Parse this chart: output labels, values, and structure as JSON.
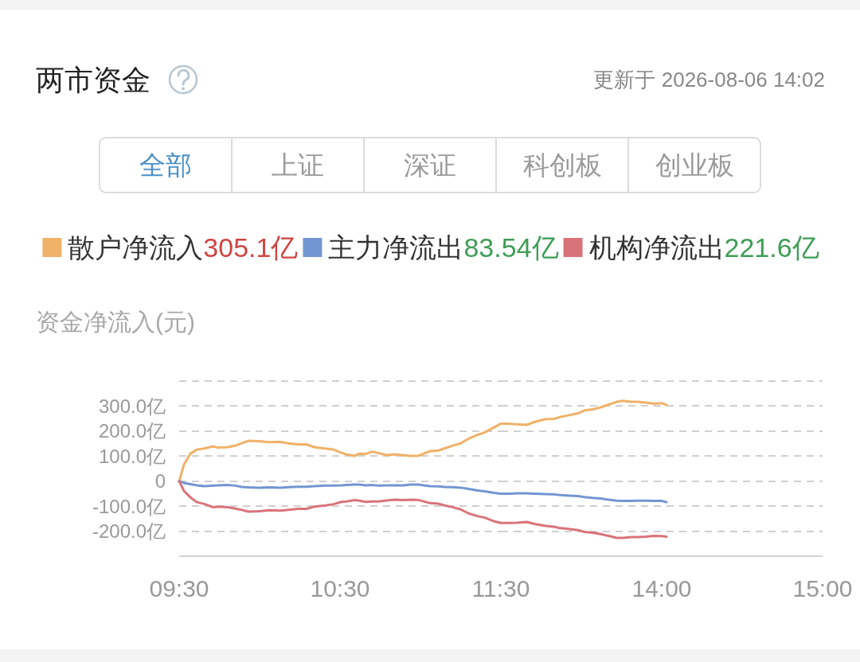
{
  "chart_data": [
    {
      "type": "line",
      "title": "两市资金",
      "ylabel": "资金净流入(元)",
      "annotations": [
        "全部",
        "上证",
        "深证",
        "科创板",
        "创业板",
        "305.1亿",
        "83.54亿",
        "221.6亿"
      ],
      "x": [
        9.5,
        9.53,
        9.57,
        9.61,
        9.66,
        9.71,
        9.74,
        9.8,
        9.85,
        9.89,
        9.93,
        10.0,
        10.06,
        10.13,
        10.18,
        10.24,
        10.29,
        10.34,
        10.41,
        10.46,
        10.51,
        10.54,
        10.59,
        10.62,
        10.66,
        10.7,
        10.74,
        10.79,
        10.84,
        10.89,
        10.94,
        10.99,
        11.02,
        11.06,
        11.11,
        11.15,
        11.2,
        11.25,
        11.3,
        11.35,
        11.4,
        11.46,
        11.5
      ],
      "series": [
        {
          "name": "散户净流入",
          "color": "#f0b168",
          "values": [
            0,
            67,
            110,
            126,
            131,
            139,
            134,
            136,
            142,
            152,
            161,
            160,
            156,
            157,
            151,
            147,
            147,
            136,
            130,
            126,
            113,
            107,
            101,
            110,
            109,
            118,
            112,
            104,
            107,
            104,
            101,
            102,
            110,
            120,
            122,
            131,
            142,
            151,
            170,
            184,
            195,
            216,
            230
          ]
        },
        {
          "name": "主力净流出",
          "color": "#7296d2",
          "values": [
            0,
            -7,
            -12,
            -17,
            -20,
            -18,
            -17,
            -15,
            -18,
            -23,
            -25,
            -26,
            -25,
            -26,
            -24,
            -22,
            -22,
            -20,
            -18,
            -18,
            -17,
            -15,
            -14,
            -14,
            -17,
            -15,
            -18,
            -17,
            -17,
            -17,
            -14,
            -14,
            -17,
            -20,
            -21,
            -23,
            -24,
            -26,
            -31,
            -37,
            -41,
            -47,
            -50
          ]
        },
        {
          "name": "机构净流出",
          "color": "#d9737a",
          "values": [
            0,
            -39,
            -65,
            -84,
            -92,
            -104,
            -102,
            -104,
            -110,
            -115,
            -122,
            -120,
            -116,
            -118,
            -115,
            -111,
            -111,
            -102,
            -97,
            -92,
            -83,
            -81,
            -76,
            -78,
            -83,
            -81,
            -81,
            -77,
            -74,
            -76,
            -74,
            -76,
            -81,
            -88,
            -90,
            -97,
            -104,
            -113,
            -129,
            -139,
            -146,
            -161,
            -167
          ]
        }
      ],
      "xlim": [
        9.5,
        11.5
      ],
      "xticks": [
        {
          "value": 9.5,
          "label": "09:30"
        },
        {
          "value": 10.5,
          "label": "10:30"
        },
        {
          "value": 11.5,
          "label": "11:30"
        }
      ],
      "ylim": [
        -300,
        400
      ],
      "yticks": [
        {
          "value": -300,
          "label": null
        },
        {
          "value": -200,
          "label": "-200.0亿"
        },
        {
          "value": -100,
          "label": "-100.0亿"
        },
        0,
        {
          "value": 100,
          "label": "100.0亿"
        },
        {
          "value": 200,
          "label": "200.0亿"
        },
        {
          "value": 300,
          "label": "300.0亿"
        },
        {
          "value": 400,
          "label": null
        }
      ],
      "grid": "y",
      "legend": "top"
    },
    {
      "type": "line",
      "subtitle": "更新于 2026-08-06 14:02",
      "x": [
        13.0,
        13.05,
        13.1,
        13.16,
        13.21,
        13.28,
        13.33,
        13.36,
        13.41,
        13.48,
        13.52,
        13.57,
        13.62,
        13.67,
        13.72,
        13.76,
        13.81,
        13.85,
        13.9,
        13.95,
        14.0,
        14.03
      ],
      "series": [
        {
          "color": "#f0b168",
          "values": [
            230,
            230,
            227,
            225,
            237,
            248,
            249,
            255,
            262,
            271,
            283,
            287,
            295,
            306,
            317,
            321,
            317,
            317,
            314,
            310,
            312,
            305
          ]
        },
        {
          "color": "#7296d2",
          "values": [
            -50,
            -50,
            -49,
            -49,
            -50,
            -52,
            -53,
            -55,
            -57,
            -60,
            -64,
            -67,
            -69,
            -74,
            -78,
            -79,
            -79,
            -78,
            -78,
            -79,
            -79,
            -84
          ]
        },
        {
          "color": "#d9737a",
          "values": [
            -167,
            -167,
            -166,
            -163,
            -171,
            -179,
            -182,
            -187,
            -190,
            -196,
            -203,
            -206,
            -212,
            -219,
            -227,
            -227,
            -224,
            -224,
            -222,
            -219,
            -220,
            -222
          ]
        }
      ],
      "xlim": [
        13,
        15
      ],
      "xticks": [
        {
          "value": 14,
          "label": "14:00"
        },
        {
          "value": 15,
          "label": "15:00"
        }
      ],
      "ylim": [
        -300,
        400
      ],
      "yticks": [
        {
          "value": -300,
          "label": null
        },
        {
          "value": -200,
          "label": null
        },
        {
          "value": -100,
          "label": null
        },
        {
          "value": 0,
          "label": null
        },
        {
          "value": 100,
          "label": null
        },
        {
          "value": 200,
          "label": null
        },
        {
          "value": 300,
          "label": null
        },
        {
          "value": 400,
          "label": null
        }
      ],
      "grid": "y",
      "tick_labels": "x"
    }
  ]
}
